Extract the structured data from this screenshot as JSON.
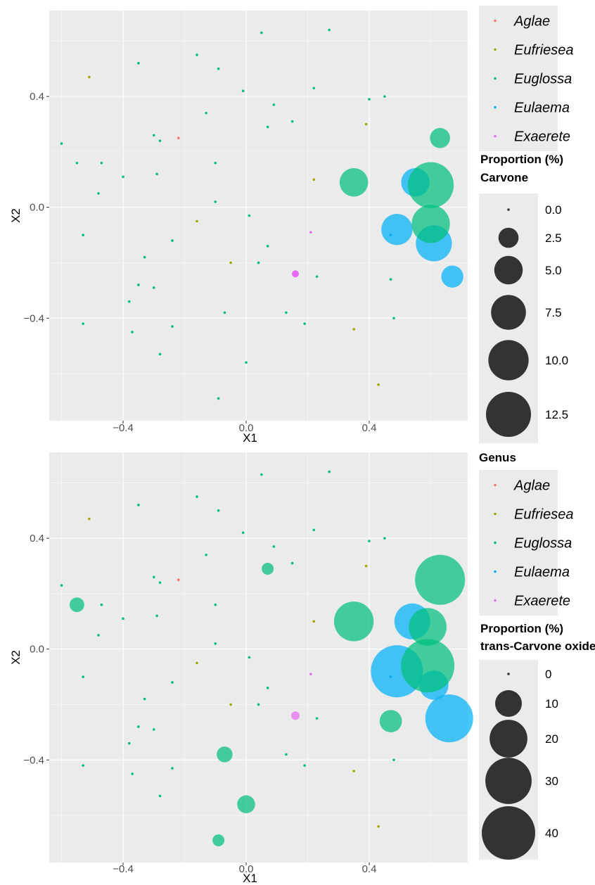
{
  "colors": {
    "Aglae": "#F8766D",
    "Eufriesea": "#A3A500",
    "Euglossa": "#00BF7D",
    "Eulaema": "#00B0F6",
    "Exaerete": "#E76BF3",
    "panel_bg": "#EBEBEB",
    "size_key": "#333333"
  },
  "chart_data": [
    {
      "type": "scatter",
      "subtype": "bubble",
      "xlabel": "X1",
      "ylabel": "X2",
      "xlim": [
        -0.64,
        0.72
      ],
      "ylim": [
        -0.77,
        0.71
      ],
      "x_ticks": [
        -0.4,
        0.0,
        0.4
      ],
      "y_ticks": [
        0.4,
        0.0,
        -0.4
      ],
      "x_tick_labels": [
        "−0.4",
        "0.0",
        "0.4"
      ],
      "y_tick_labels": [
        "0.4",
        "0.0",
        "−0.4"
      ],
      "grid": true,
      "color_legend": {
        "title": "",
        "position": "right-top",
        "items": [
          "Aglae",
          "Eufriesea",
          "Euglossa",
          "Eulaema",
          "Exaerete"
        ]
      },
      "size_legend": {
        "title_lines": [
          "Proportion (%)",
          "Carvone"
        ],
        "breaks": [
          0.0,
          2.5,
          5.0,
          7.5,
          10.0,
          12.5
        ],
        "labels": [
          "0.0",
          "2.5",
          "5.0",
          "7.5",
          "10.0",
          "12.5"
        ],
        "max": 12.5
      },
      "points": [
        {
          "genus": "Aglae",
          "x": -0.22,
          "y": 0.25,
          "value": 0
        },
        {
          "genus": "Eufriesea",
          "x": -0.51,
          "y": 0.47,
          "value": 0
        },
        {
          "genus": "Eufriesea",
          "x": 0.39,
          "y": 0.3,
          "value": 0
        },
        {
          "genus": "Eufriesea",
          "x": 0.22,
          "y": 0.1,
          "value": 0
        },
        {
          "genus": "Eufriesea",
          "x": -0.16,
          "y": -0.05,
          "value": 0
        },
        {
          "genus": "Eufriesea",
          "x": -0.05,
          "y": -0.2,
          "value": 0
        },
        {
          "genus": "Eufriesea",
          "x": 0.35,
          "y": -0.44,
          "value": 0
        },
        {
          "genus": "Eufriesea",
          "x": 0.43,
          "y": -0.64,
          "value": 0
        },
        {
          "genus": "Euglossa",
          "x": 0.05,
          "y": 0.63,
          "value": 0
        },
        {
          "genus": "Euglossa",
          "x": 0.27,
          "y": 0.64,
          "value": 0
        },
        {
          "genus": "Euglossa",
          "x": -0.35,
          "y": 0.52,
          "value": 0
        },
        {
          "genus": "Euglossa",
          "x": -0.16,
          "y": 0.55,
          "value": 0
        },
        {
          "genus": "Euglossa",
          "x": -0.09,
          "y": 0.5,
          "value": 0
        },
        {
          "genus": "Euglossa",
          "x": -0.01,
          "y": 0.42,
          "value": 0
        },
        {
          "genus": "Euglossa",
          "x": 0.22,
          "y": 0.43,
          "value": 0
        },
        {
          "genus": "Euglossa",
          "x": 0.4,
          "y": 0.39,
          "value": 0
        },
        {
          "genus": "Euglossa",
          "x": 0.45,
          "y": 0.4,
          "value": 0
        },
        {
          "genus": "Euglossa",
          "x": 0.09,
          "y": 0.37,
          "value": 0
        },
        {
          "genus": "Euglossa",
          "x": -0.13,
          "y": 0.34,
          "value": 0
        },
        {
          "genus": "Euglossa",
          "x": 0.15,
          "y": 0.31,
          "value": 0
        },
        {
          "genus": "Euglossa",
          "x": 0.07,
          "y": 0.29,
          "value": 0
        },
        {
          "genus": "Euglossa",
          "x": -0.3,
          "y": 0.26,
          "value": 0
        },
        {
          "genus": "Euglossa",
          "x": -0.28,
          "y": 0.24,
          "value": 0
        },
        {
          "genus": "Euglossa",
          "x": -0.6,
          "y": 0.23,
          "value": 0
        },
        {
          "genus": "Euglossa",
          "x": -0.55,
          "y": 0.16,
          "value": 0
        },
        {
          "genus": "Euglossa",
          "x": -0.47,
          "y": 0.16,
          "value": 0
        },
        {
          "genus": "Euglossa",
          "x": -0.1,
          "y": 0.16,
          "value": 0
        },
        {
          "genus": "Euglossa",
          "x": -0.29,
          "y": 0.12,
          "value": 0
        },
        {
          "genus": "Euglossa",
          "x": -0.4,
          "y": 0.11,
          "value": 0
        },
        {
          "genus": "Euglossa",
          "x": -0.48,
          "y": 0.05,
          "value": 0
        },
        {
          "genus": "Euglossa",
          "x": -0.1,
          "y": 0.02,
          "value": 0
        },
        {
          "genus": "Euglossa",
          "x": 0.01,
          "y": -0.03,
          "value": 0
        },
        {
          "genus": "Euglossa",
          "x": -0.53,
          "y": -0.1,
          "value": 0
        },
        {
          "genus": "Euglossa",
          "x": -0.24,
          "y": -0.12,
          "value": 0
        },
        {
          "genus": "Euglossa",
          "x": 0.07,
          "y": -0.14,
          "value": 0
        },
        {
          "genus": "Euglossa",
          "x": -0.33,
          "y": -0.18,
          "value": 0
        },
        {
          "genus": "Euglossa",
          "x": 0.04,
          "y": -0.2,
          "value": 0
        },
        {
          "genus": "Euglossa",
          "x": 0.23,
          "y": -0.25,
          "value": 0
        },
        {
          "genus": "Euglossa",
          "x": 0.47,
          "y": -0.26,
          "value": 0
        },
        {
          "genus": "Euglossa",
          "x": -0.35,
          "y": -0.28,
          "value": 0
        },
        {
          "genus": "Euglossa",
          "x": -0.3,
          "y": -0.29,
          "value": 0
        },
        {
          "genus": "Euglossa",
          "x": -0.38,
          "y": -0.34,
          "value": 0
        },
        {
          "genus": "Euglossa",
          "x": -0.07,
          "y": -0.38,
          "value": 0
        },
        {
          "genus": "Euglossa",
          "x": 0.13,
          "y": -0.38,
          "value": 0
        },
        {
          "genus": "Euglossa",
          "x": 0.48,
          "y": -0.4,
          "value": 0
        },
        {
          "genus": "Euglossa",
          "x": -0.53,
          "y": -0.42,
          "value": 0
        },
        {
          "genus": "Euglossa",
          "x": 0.19,
          "y": -0.42,
          "value": 0
        },
        {
          "genus": "Euglossa",
          "x": -0.24,
          "y": -0.43,
          "value": 0
        },
        {
          "genus": "Euglossa",
          "x": -0.37,
          "y": -0.45,
          "value": 0
        },
        {
          "genus": "Euglossa",
          "x": -0.28,
          "y": -0.53,
          "value": 0
        },
        {
          "genus": "Euglossa",
          "x": 0.0,
          "y": -0.56,
          "value": 0
        },
        {
          "genus": "Euglossa",
          "x": -0.09,
          "y": -0.69,
          "value": 0
        },
        {
          "genus": "Euglossa",
          "x": 0.63,
          "y": 0.25,
          "value": 2.5
        },
        {
          "genus": "Euglossa",
          "x": 0.35,
          "y": 0.09,
          "value": 5.0
        },
        {
          "genus": "Euglossa",
          "x": 0.6,
          "y": 0.08,
          "value": 13.0
        },
        {
          "genus": "Euglossa",
          "x": 0.6,
          "y": -0.06,
          "value": 9.0
        },
        {
          "genus": "Eulaema",
          "x": 0.55,
          "y": 0.09,
          "value": 5.0
        },
        {
          "genus": "Eulaema",
          "x": 0.49,
          "y": -0.08,
          "value": 6.0
        },
        {
          "genus": "Eulaema",
          "x": 0.61,
          "y": -0.13,
          "value": 8.0
        },
        {
          "genus": "Eulaema",
          "x": 0.67,
          "y": -0.25,
          "value": 3.0
        },
        {
          "genus": "Eulaema",
          "x": 0.47,
          "y": -0.1,
          "value": 0
        },
        {
          "genus": "Exaerete",
          "x": 0.21,
          "y": -0.09,
          "value": 0
        },
        {
          "genus": "Exaerete",
          "x": 0.16,
          "y": -0.24,
          "value": 0.3
        }
      ]
    },
    {
      "type": "scatter",
      "subtype": "bubble",
      "xlabel": "X1",
      "ylabel": "X2",
      "xlim": [
        -0.64,
        0.72
      ],
      "ylim": [
        -0.77,
        0.71
      ],
      "x_ticks": [
        -0.4,
        0.0,
        0.4
      ],
      "y_ticks": [
        0.4,
        0.0,
        -0.4
      ],
      "x_tick_labels": [
        "−0.4",
        "0.0",
        "0.4"
      ],
      "y_tick_labels": [
        "0.4",
        "0.0",
        "−0.4"
      ],
      "grid": true,
      "color_legend": {
        "title": "Genus",
        "position": "right-top",
        "items": [
          "Aglae",
          "Eufriesea",
          "Euglossa",
          "Eulaema",
          "Exaerete"
        ]
      },
      "size_legend": {
        "title_lines": [
          "Proportion (%)",
          "trans-Carvone oxide"
        ],
        "breaks": [
          0,
          10,
          20,
          30,
          40
        ],
        "labels": [
          "0",
          "10",
          "20",
          "30",
          "40"
        ],
        "max": 40
      },
      "points": [
        {
          "genus": "Aglae",
          "x": -0.22,
          "y": 0.25,
          "value": 0
        },
        {
          "genus": "Eufriesea",
          "x": -0.51,
          "y": 0.47,
          "value": 0
        },
        {
          "genus": "Eufriesea",
          "x": 0.39,
          "y": 0.3,
          "value": 0
        },
        {
          "genus": "Eufriesea",
          "x": 0.22,
          "y": 0.1,
          "value": 0
        },
        {
          "genus": "Eufriesea",
          "x": -0.16,
          "y": -0.05,
          "value": 0
        },
        {
          "genus": "Eufriesea",
          "x": -0.05,
          "y": -0.2,
          "value": 0
        },
        {
          "genus": "Eufriesea",
          "x": 0.35,
          "y": -0.44,
          "value": 0
        },
        {
          "genus": "Eufriesea",
          "x": 0.43,
          "y": -0.64,
          "value": 0
        },
        {
          "genus": "Euglossa",
          "x": 0.05,
          "y": 0.63,
          "value": 0
        },
        {
          "genus": "Euglossa",
          "x": 0.27,
          "y": 0.64,
          "value": 0
        },
        {
          "genus": "Euglossa",
          "x": -0.35,
          "y": 0.52,
          "value": 0
        },
        {
          "genus": "Euglossa",
          "x": -0.16,
          "y": 0.55,
          "value": 0
        },
        {
          "genus": "Euglossa",
          "x": -0.09,
          "y": 0.5,
          "value": 0
        },
        {
          "genus": "Euglossa",
          "x": -0.01,
          "y": 0.42,
          "value": 0
        },
        {
          "genus": "Euglossa",
          "x": 0.22,
          "y": 0.43,
          "value": 0
        },
        {
          "genus": "Euglossa",
          "x": 0.4,
          "y": 0.39,
          "value": 0
        },
        {
          "genus": "Euglossa",
          "x": 0.45,
          "y": 0.4,
          "value": 0
        },
        {
          "genus": "Euglossa",
          "x": 0.09,
          "y": 0.37,
          "value": 0
        },
        {
          "genus": "Euglossa",
          "x": -0.13,
          "y": 0.34,
          "value": 0
        },
        {
          "genus": "Euglossa",
          "x": 0.15,
          "y": 0.31,
          "value": 0
        },
        {
          "genus": "Euglossa",
          "x": 0.07,
          "y": 0.29,
          "value": 2.0
        },
        {
          "genus": "Euglossa",
          "x": -0.3,
          "y": 0.26,
          "value": 0
        },
        {
          "genus": "Euglossa",
          "x": -0.28,
          "y": 0.24,
          "value": 0
        },
        {
          "genus": "Euglossa",
          "x": -0.6,
          "y": 0.23,
          "value": 0
        },
        {
          "genus": "Euglossa",
          "x": -0.55,
          "y": 0.16,
          "value": 3.0
        },
        {
          "genus": "Euglossa",
          "x": -0.47,
          "y": 0.16,
          "value": 0
        },
        {
          "genus": "Euglossa",
          "x": -0.1,
          "y": 0.16,
          "value": 0
        },
        {
          "genus": "Euglossa",
          "x": -0.29,
          "y": 0.12,
          "value": 0
        },
        {
          "genus": "Euglossa",
          "x": -0.4,
          "y": 0.11,
          "value": 0
        },
        {
          "genus": "Euglossa",
          "x": -0.48,
          "y": 0.05,
          "value": 0
        },
        {
          "genus": "Euglossa",
          "x": -0.1,
          "y": 0.02,
          "value": 0
        },
        {
          "genus": "Euglossa",
          "x": 0.01,
          "y": -0.03,
          "value": 0
        },
        {
          "genus": "Euglossa",
          "x": -0.53,
          "y": -0.1,
          "value": 0
        },
        {
          "genus": "Euglossa",
          "x": -0.24,
          "y": -0.12,
          "value": 0
        },
        {
          "genus": "Euglossa",
          "x": 0.07,
          "y": -0.14,
          "value": 0
        },
        {
          "genus": "Euglossa",
          "x": -0.33,
          "y": -0.18,
          "value": 0
        },
        {
          "genus": "Euglossa",
          "x": 0.04,
          "y": -0.2,
          "value": 0
        },
        {
          "genus": "Euglossa",
          "x": 0.23,
          "y": -0.25,
          "value": 0
        },
        {
          "genus": "Euglossa",
          "x": 0.47,
          "y": -0.26,
          "value": 7.0
        },
        {
          "genus": "Euglossa",
          "x": -0.35,
          "y": -0.28,
          "value": 0
        },
        {
          "genus": "Euglossa",
          "x": -0.3,
          "y": -0.29,
          "value": 0
        },
        {
          "genus": "Euglossa",
          "x": -0.38,
          "y": -0.34,
          "value": 0
        },
        {
          "genus": "Euglossa",
          "x": -0.07,
          "y": -0.38,
          "value": 3.5
        },
        {
          "genus": "Euglossa",
          "x": 0.13,
          "y": -0.38,
          "value": 0
        },
        {
          "genus": "Euglossa",
          "x": 0.48,
          "y": -0.4,
          "value": 0
        },
        {
          "genus": "Euglossa",
          "x": -0.53,
          "y": -0.42,
          "value": 0
        },
        {
          "genus": "Euglossa",
          "x": 0.19,
          "y": -0.42,
          "value": 0
        },
        {
          "genus": "Euglossa",
          "x": -0.24,
          "y": -0.43,
          "value": 0
        },
        {
          "genus": "Euglossa",
          "x": -0.37,
          "y": -0.45,
          "value": 0
        },
        {
          "genus": "Euglossa",
          "x": -0.28,
          "y": -0.53,
          "value": 0
        },
        {
          "genus": "Euglossa",
          "x": 0.0,
          "y": -0.56,
          "value": 4.5
        },
        {
          "genus": "Euglossa",
          "x": -0.09,
          "y": -0.69,
          "value": 2.0
        },
        {
          "genus": "Euglossa",
          "x": 0.63,
          "y": 0.25,
          "value": 35.0
        },
        {
          "genus": "Euglossa",
          "x": 0.35,
          "y": 0.1,
          "value": 22.0
        },
        {
          "genus": "Euglossa",
          "x": 0.59,
          "y": 0.08,
          "value": 20.0
        },
        {
          "genus": "Euglossa",
          "x": 0.59,
          "y": -0.06,
          "value": 40.0
        },
        {
          "genus": "Eulaema",
          "x": 0.54,
          "y": 0.1,
          "value": 18.0
        },
        {
          "genus": "Eulaema",
          "x": 0.49,
          "y": -0.08,
          "value": 38.0
        },
        {
          "genus": "Eulaema",
          "x": 0.61,
          "y": -0.13,
          "value": 12.0
        },
        {
          "genus": "Eulaema",
          "x": 0.66,
          "y": -0.25,
          "value": 32.0
        },
        {
          "genus": "Eulaema",
          "x": 0.47,
          "y": -0.1,
          "value": 0
        },
        {
          "genus": "Exaerete",
          "x": 0.21,
          "y": -0.09,
          "value": 0
        },
        {
          "genus": "Exaerete",
          "x": 0.16,
          "y": -0.24,
          "value": 1.0
        }
      ]
    }
  ]
}
